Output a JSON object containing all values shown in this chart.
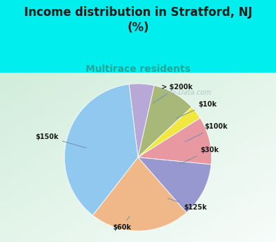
{
  "title": "Income distribution in Stratford, NJ\n(%)",
  "subtitle": "Multirace residents",
  "labels": [
    "> $200k",
    "$10k",
    "$100k",
    "$30k",
    "$125k",
    "$60k",
    "$150k"
  ],
  "sizes": [
    5.5,
    9.5,
    3.0,
    10.5,
    12.0,
    22.0,
    37.5
  ],
  "colors": [
    "#b8a8d8",
    "#a8b878",
    "#f0e840",
    "#e898a0",
    "#9898d0",
    "#f0b888",
    "#90c8f0"
  ],
  "bg_color_top": "#00eeee",
  "title_color": "#1a1a1a",
  "subtitle_color": "#20a898",
  "label_color": "#1a1a1a",
  "start_angle": 90,
  "watermark": "  City-Data.com"
}
